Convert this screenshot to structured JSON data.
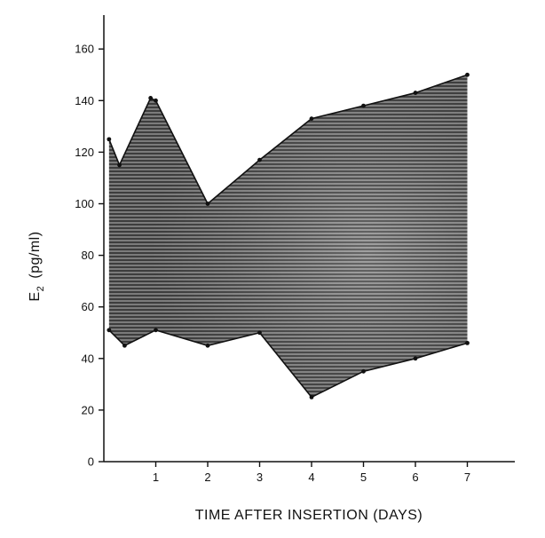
{
  "chart_data": {
    "type": "area",
    "title": "",
    "xlabel": "TIME AFTER INSERTION   (DAYS)",
    "ylabel": {
      "main": "E",
      "subscript": "2",
      "unit": "(pg/ml)"
    },
    "xlim": [
      0,
      8
    ],
    "ylim": [
      0,
      170
    ],
    "x_ticks": [
      "1",
      "2",
      "3",
      "4",
      "5",
      "6",
      "7"
    ],
    "x_tick_values": [
      1,
      2,
      3,
      4,
      5,
      6,
      7
    ],
    "y_ticks": [
      "0",
      "20",
      "40",
      "60",
      "80",
      "100",
      "120",
      "140",
      "160"
    ],
    "y_tick_values": [
      0,
      20,
      40,
      60,
      80,
      100,
      120,
      140,
      160
    ],
    "grid": false,
    "legend": "none",
    "series": [
      {
        "role": "upper",
        "x": [
          0.1,
          0.3,
          0.9,
          1.0,
          2.0,
          3.0,
          4.0,
          5.0,
          6.0,
          7.0
        ],
        "y": [
          125,
          115,
          141,
          140,
          100,
          117,
          133,
          138,
          143,
          150
        ]
      },
      {
        "role": "lower",
        "x": [
          0.1,
          0.4,
          1.0,
          2.0,
          3.0,
          4.0,
          5.0,
          6.0,
          7.0
        ],
        "y": [
          51,
          45,
          51,
          45,
          50,
          25,
          35,
          40,
          46
        ]
      }
    ],
    "colors": {
      "fill_dark": "#3a3a3a",
      "fill_light": "#8c8c8c",
      "line": "#111111"
    }
  }
}
